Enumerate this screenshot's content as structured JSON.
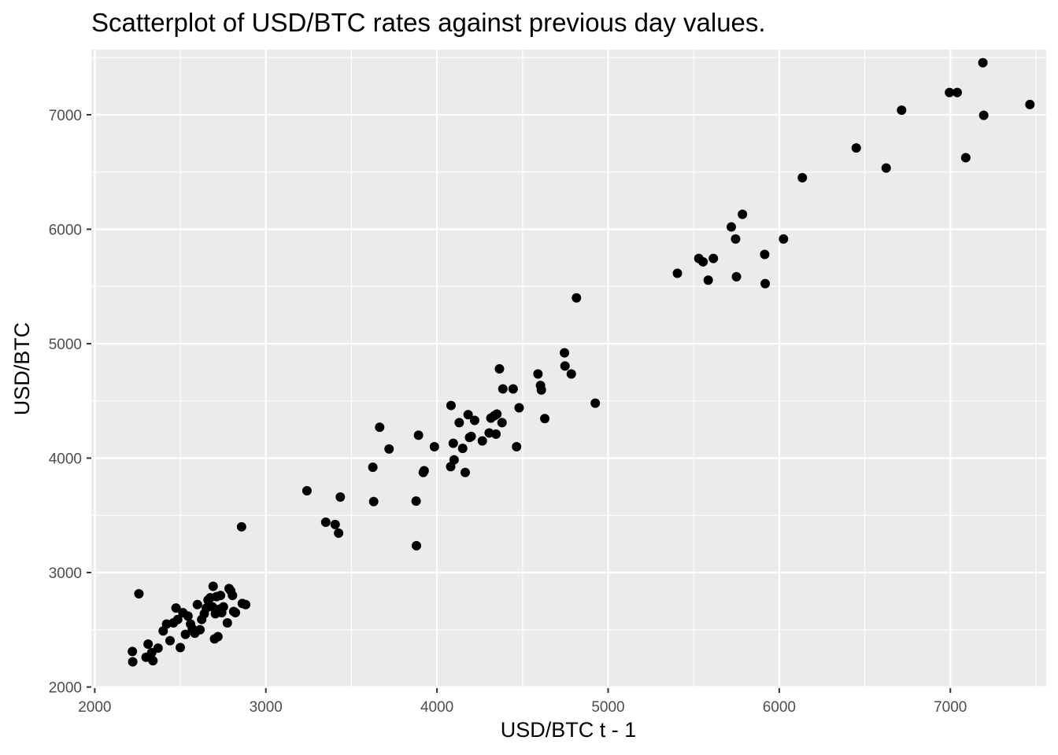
{
  "chart_data": {
    "type": "scatter",
    "title": "Scatterplot of USD/BTC rates against previous day values.",
    "xlabel": "USD/BTC t - 1",
    "ylabel": "USD/BTC",
    "xlim": [
      1980,
      7560
    ],
    "ylim": [
      1990,
      7570
    ],
    "xticks": [
      "2000",
      "3000",
      "4000",
      "5000",
      "6000",
      "7000"
    ],
    "yticks": [
      "2000",
      "3000",
      "4000",
      "5000",
      "6000",
      "7000"
    ],
    "grid": true,
    "legend": "none",
    "colors": {
      "panel": "#ebebeb",
      "grid": "#ffffff",
      "point": "#000000",
      "tick": "#333333"
    },
    "points": [
      [
        2220,
        2310
      ],
      [
        2222,
        2220
      ],
      [
        2258,
        2815
      ],
      [
        2300,
        2260
      ],
      [
        2312,
        2375
      ],
      [
        2333,
        2300
      ],
      [
        2340,
        2230
      ],
      [
        2370,
        2340
      ],
      [
        2400,
        2490
      ],
      [
        2420,
        2550
      ],
      [
        2440,
        2405
      ],
      [
        2460,
        2560
      ],
      [
        2475,
        2690
      ],
      [
        2485,
        2590
      ],
      [
        2500,
        2345
      ],
      [
        2515,
        2650
      ],
      [
        2530,
        2460
      ],
      [
        2545,
        2620
      ],
      [
        2560,
        2550
      ],
      [
        2570,
        2510
      ],
      [
        2585,
        2470
      ],
      [
        2600,
        2720
      ],
      [
        2615,
        2500
      ],
      [
        2625,
        2590
      ],
      [
        2640,
        2640
      ],
      [
        2652,
        2690
      ],
      [
        2662,
        2760
      ],
      [
        2675,
        2780
      ],
      [
        2688,
        2700
      ],
      [
        2692,
        2880
      ],
      [
        2700,
        2420
      ],
      [
        2705,
        2640
      ],
      [
        2712,
        2790
      ],
      [
        2720,
        2440
      ],
      [
        2728,
        2680
      ],
      [
        2735,
        2800
      ],
      [
        2742,
        2650
      ],
      [
        2752,
        2700
      ],
      [
        2775,
        2560
      ],
      [
        2785,
        2860
      ],
      [
        2795,
        2840
      ],
      [
        2805,
        2800
      ],
      [
        2812,
        2660
      ],
      [
        2822,
        2650
      ],
      [
        2858,
        3400
      ],
      [
        2862,
        2730
      ],
      [
        2882,
        2720
      ],
      [
        3240,
        3715
      ],
      [
        3350,
        3440
      ],
      [
        3405,
        3420
      ],
      [
        3425,
        3345
      ],
      [
        3435,
        3660
      ],
      [
        3625,
        3920
      ],
      [
        3630,
        3620
      ],
      [
        3665,
        4270
      ],
      [
        3720,
        4080
      ],
      [
        3878,
        3625
      ],
      [
        3880,
        3235
      ],
      [
        3892,
        4200
      ],
      [
        3920,
        3875
      ],
      [
        3925,
        3890
      ],
      [
        3985,
        4100
      ],
      [
        4080,
        3925
      ],
      [
        4082,
        4460
      ],
      [
        4095,
        4130
      ],
      [
        4100,
        3985
      ],
      [
        4130,
        4310
      ],
      [
        4150,
        4085
      ],
      [
        4165,
        3875
      ],
      [
        4182,
        4380
      ],
      [
        4190,
        4180
      ],
      [
        4200,
        4190
      ],
      [
        4220,
        4330
      ],
      [
        4265,
        4150
      ],
      [
        4305,
        4220
      ],
      [
        4315,
        4350
      ],
      [
        4335,
        4370
      ],
      [
        4345,
        4210
      ],
      [
        4350,
        4385
      ],
      [
        4365,
        4780
      ],
      [
        4380,
        4310
      ],
      [
        4385,
        4605
      ],
      [
        4445,
        4605
      ],
      [
        4465,
        4100
      ],
      [
        4480,
        4440
      ],
      [
        4590,
        4735
      ],
      [
        4605,
        4635
      ],
      [
        4610,
        4595
      ],
      [
        4630,
        4345
      ],
      [
        4745,
        4920
      ],
      [
        4748,
        4805
      ],
      [
        4785,
        4735
      ],
      [
        4815,
        5400
      ],
      [
        4925,
        4480
      ],
      [
        5405,
        5615
      ],
      [
        5530,
        5745
      ],
      [
        5555,
        5715
      ],
      [
        5585,
        5555
      ],
      [
        5615,
        5745
      ],
      [
        5720,
        6020
      ],
      [
        5745,
        5915
      ],
      [
        5750,
        5585
      ],
      [
        5785,
        6130
      ],
      [
        5915,
        5780
      ],
      [
        5918,
        5525
      ],
      [
        6025,
        5915
      ],
      [
        6135,
        6450
      ],
      [
        6450,
        6710
      ],
      [
        6625,
        6535
      ],
      [
        6715,
        7040
      ],
      [
        6995,
        7195
      ],
      [
        7040,
        7195
      ],
      [
        7090,
        6625
      ],
      [
        7190,
        7455
      ],
      [
        7195,
        6995
      ],
      [
        7465,
        7090
      ]
    ]
  }
}
